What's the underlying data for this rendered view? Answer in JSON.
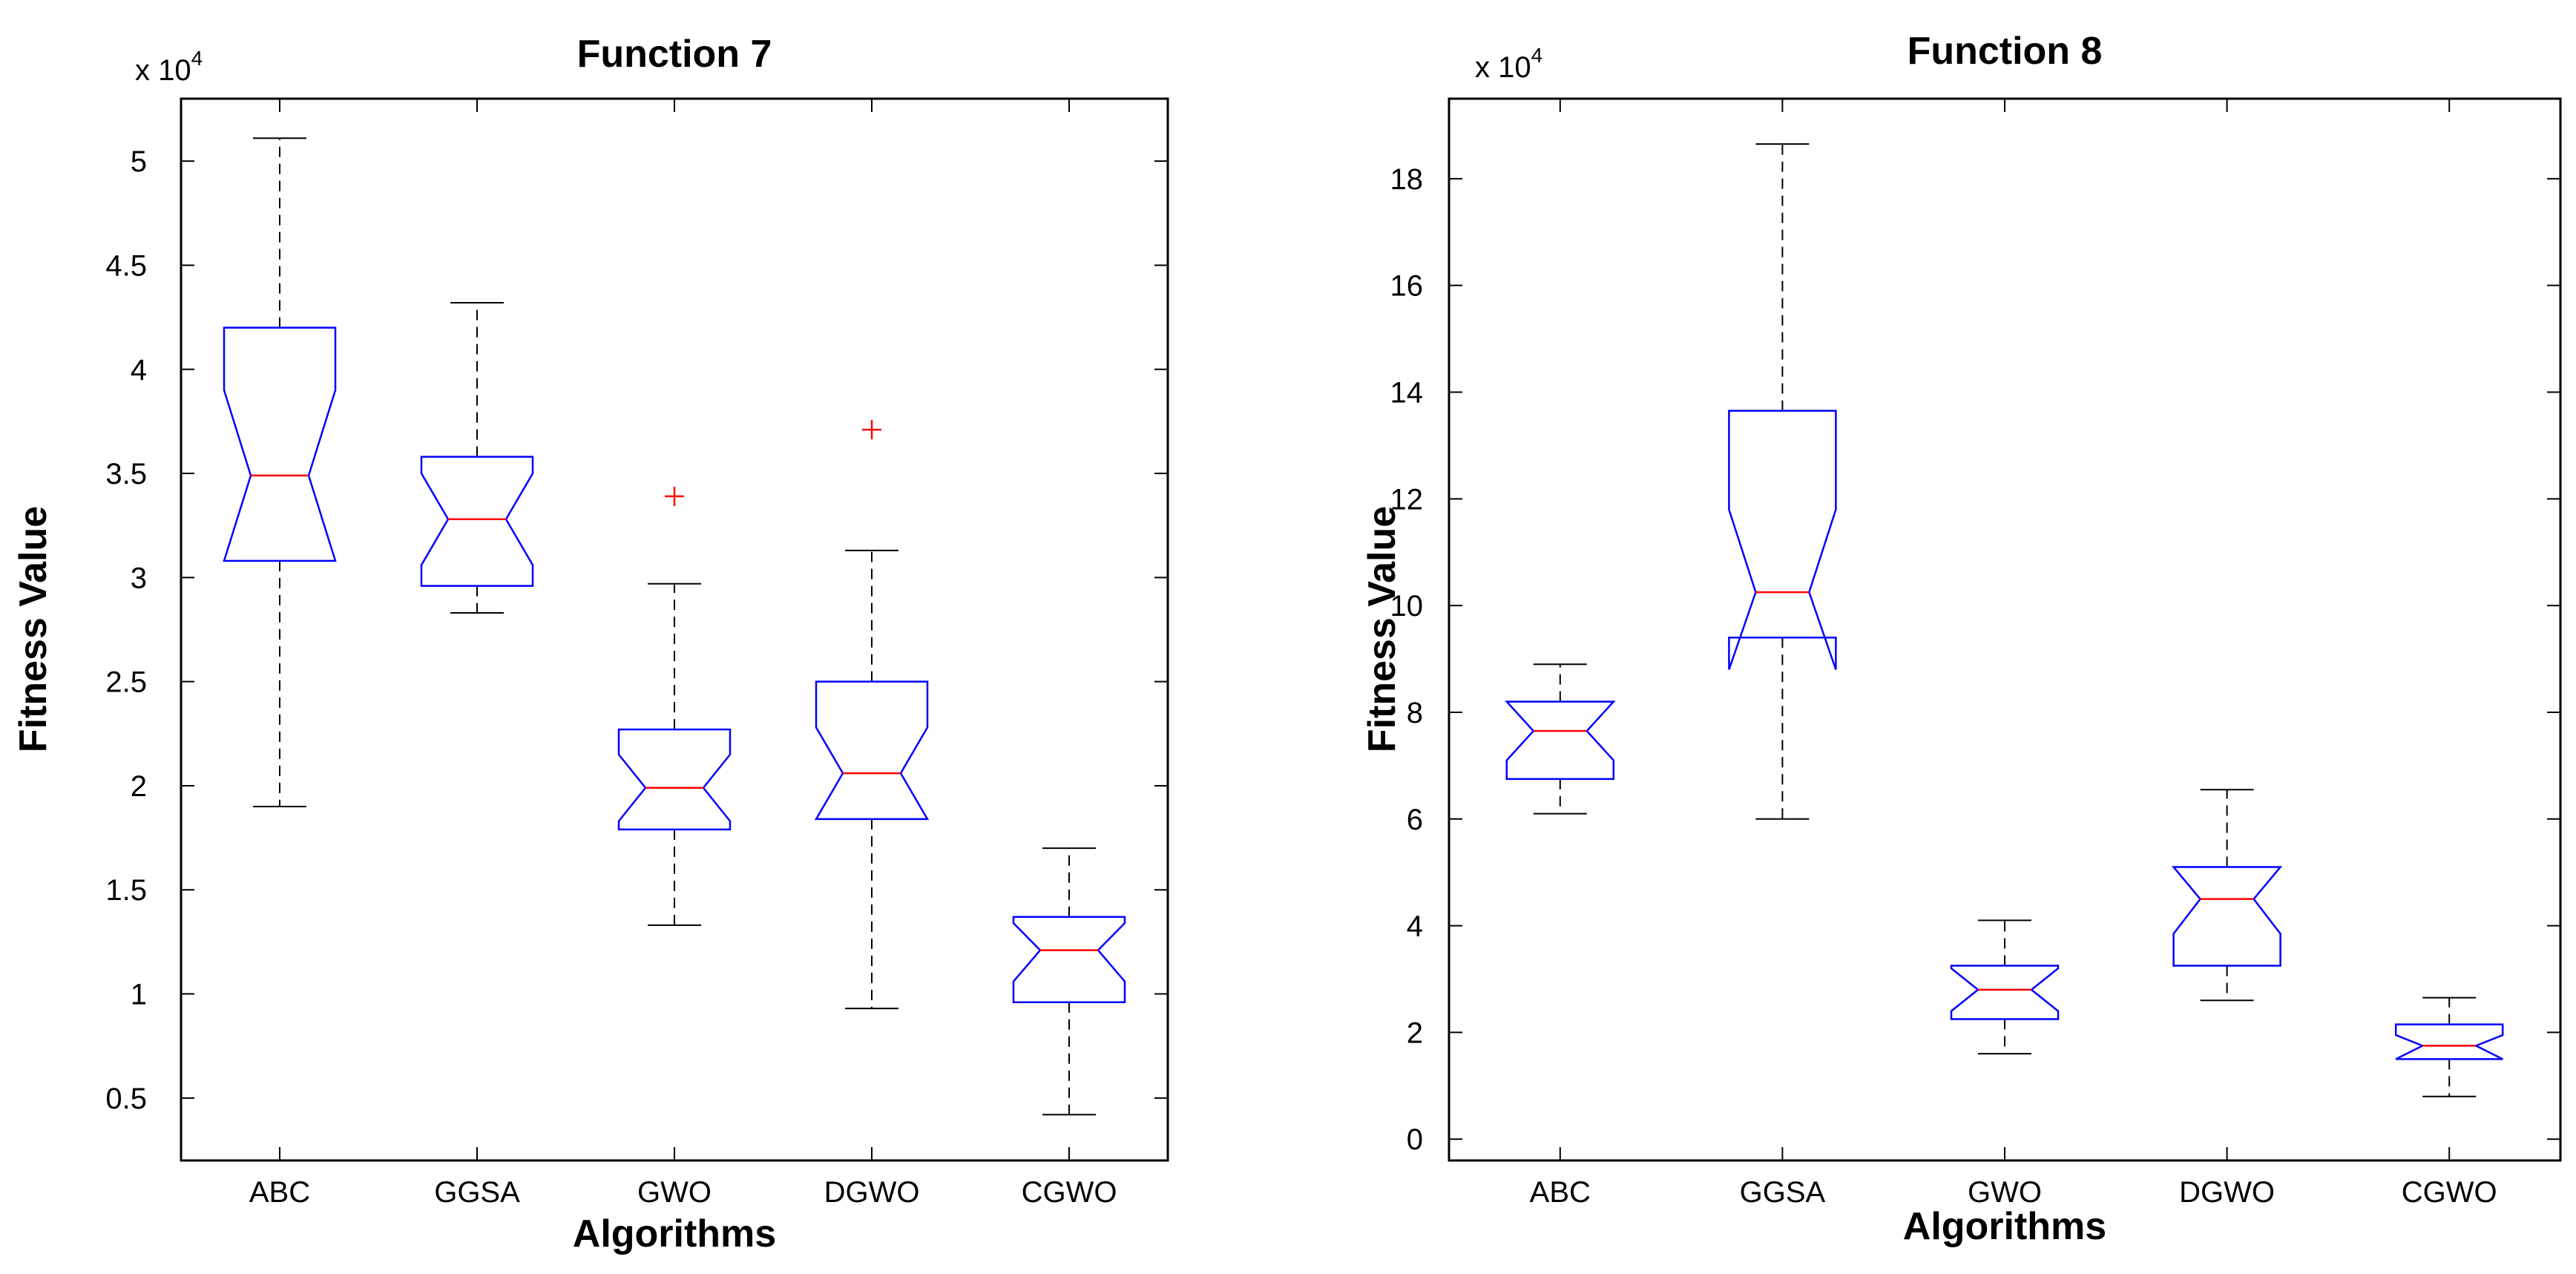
{
  "chart_data": [
    {
      "type": "box",
      "title": "Function 7",
      "xlabel": "Algorithms",
      "ylabel": "Fitness Value",
      "y_multiplier_base": "x 10",
      "y_multiplier_exp": "4",
      "ylim": [
        0.2,
        5.3
      ],
      "yticks": [
        0.5,
        1,
        1.5,
        2,
        2.5,
        3,
        3.5,
        4,
        4.5,
        5
      ],
      "ytick_labels": [
        "0.5",
        "1",
        "1.5",
        "2",
        "2.5",
        "3",
        "3.5",
        "4",
        "4.5",
        "5"
      ],
      "categories": [
        "ABC",
        "GGSA",
        "GWO",
        "DGWO",
        "CGWO"
      ],
      "boxes": [
        {
          "min": 1.9,
          "q1": 3.08,
          "median": 3.49,
          "q3": 4.2,
          "max": 5.11,
          "notch_lo": 3.08,
          "notch_hi": 3.9,
          "outliers": []
        },
        {
          "min": 2.83,
          "q1": 2.96,
          "median": 3.28,
          "q3": 3.58,
          "max": 4.32,
          "notch_lo": 3.06,
          "notch_hi": 3.5,
          "outliers": []
        },
        {
          "min": 1.33,
          "q1": 1.79,
          "median": 1.99,
          "q3": 2.27,
          "max": 2.97,
          "notch_lo": 1.83,
          "notch_hi": 2.15,
          "outliers": [
            3.39
          ]
        },
        {
          "min": 0.93,
          "q1": 1.84,
          "median": 2.06,
          "q3": 2.5,
          "max": 3.13,
          "notch_lo": 1.84,
          "notch_hi": 2.28,
          "outliers": [
            3.71
          ]
        },
        {
          "min": 0.42,
          "q1": 0.96,
          "median": 1.21,
          "q3": 1.37,
          "max": 1.7,
          "notch_lo": 1.06,
          "notch_hi": 1.34,
          "outliers": []
        }
      ]
    },
    {
      "type": "box",
      "title": "Function 8",
      "xlabel": "Algorithms",
      "ylabel": "Fitness Value",
      "y_multiplier_base": "x 10",
      "y_multiplier_exp": "4",
      "ylim": [
        -0.4,
        19.5
      ],
      "yticks": [
        0,
        2,
        4,
        6,
        8,
        10,
        12,
        14,
        16,
        18
      ],
      "ytick_labels": [
        "0",
        "2",
        "4",
        "6",
        "8",
        "10",
        "12",
        "14",
        "16",
        "18"
      ],
      "categories": [
        "ABC",
        "GGSA",
        "GWO",
        "DGWO",
        "CGWO"
      ],
      "boxes": [
        {
          "min": 6.1,
          "q1": 6.75,
          "median": 7.65,
          "q3": 8.2,
          "max": 8.9,
          "notch_lo": 7.1,
          "notch_hi": 8.2,
          "outliers": []
        },
        {
          "min": 6.0,
          "q1": 9.4,
          "median": 10.25,
          "q3": 13.65,
          "max": 18.65,
          "notch_lo": 8.8,
          "notch_hi": 11.8,
          "outliers": []
        },
        {
          "min": 1.6,
          "q1": 2.25,
          "median": 2.8,
          "q3": 3.25,
          "max": 4.1,
          "notch_lo": 2.4,
          "notch_hi": 3.2,
          "outliers": []
        },
        {
          "min": 2.6,
          "q1": 3.25,
          "median": 4.5,
          "q3": 5.1,
          "max": 6.55,
          "notch_lo": 3.85,
          "notch_hi": 5.1,
          "outliers": []
        },
        {
          "min": 0.8,
          "q1": 1.5,
          "median": 1.75,
          "q3": 2.15,
          "max": 2.65,
          "notch_lo": 1.5,
          "notch_hi": 1.95,
          "outliers": []
        }
      ]
    }
  ]
}
